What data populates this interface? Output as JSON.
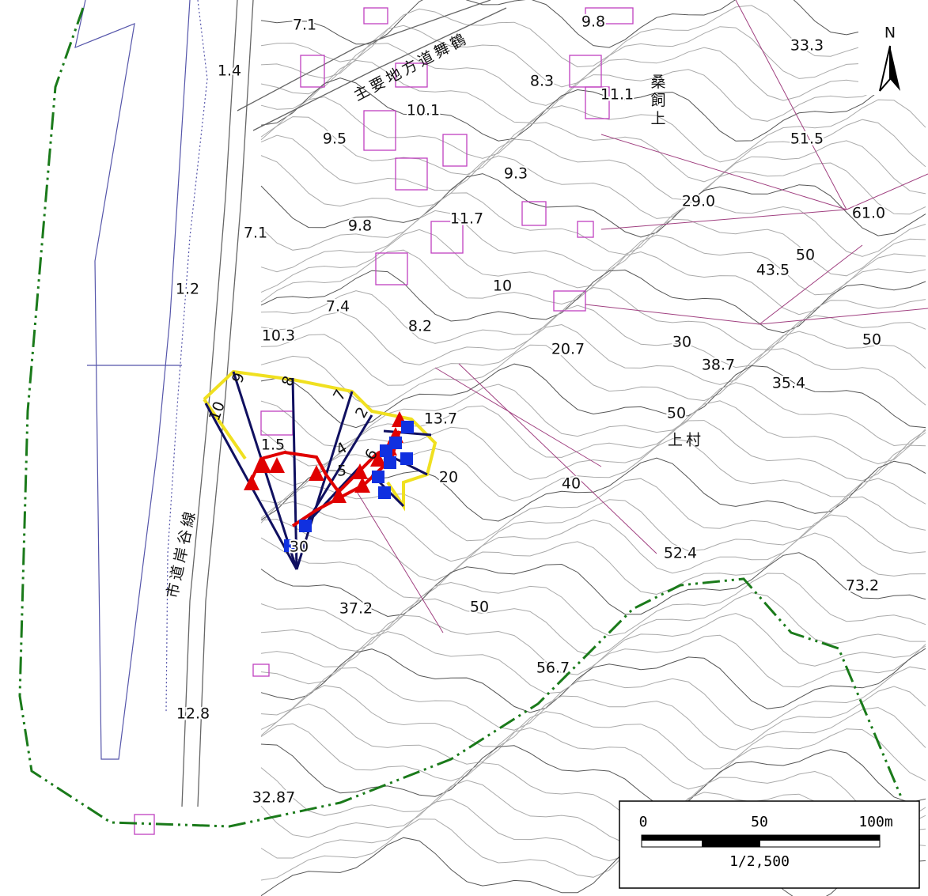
{
  "north": "N",
  "place_names": [
    "主要地方道舞鶴",
    "桑飼上",
    "上村",
    "市道岸谷線"
  ],
  "elevation_labels": [
    "7.1",
    "9.8",
    "33.3",
    "1.4",
    "8.3",
    "11.1",
    "10.1",
    "9.5",
    "51.5",
    "9.3",
    "29.0",
    "61.0",
    "7.1",
    "9.8",
    "11.7",
    "50",
    "43.5",
    "1.2",
    "10",
    "7.4",
    "8.2",
    "10.3",
    "20.7",
    "30",
    "38.7",
    "50",
    "35.4",
    "50",
    "13.7",
    "20",
    "40",
    "30",
    "52.4",
    "73.2",
    "37.2",
    "50",
    "56.7",
    "12.8",
    "32.87"
  ],
  "profile_labels": [
    "10",
    "9",
    "8",
    "7",
    "1.5",
    "2",
    "4",
    "5",
    "6"
  ],
  "scale_bar": {
    "ticks": [
      "0",
      "50",
      "100m"
    ],
    "ratio": "1/2,500"
  }
}
